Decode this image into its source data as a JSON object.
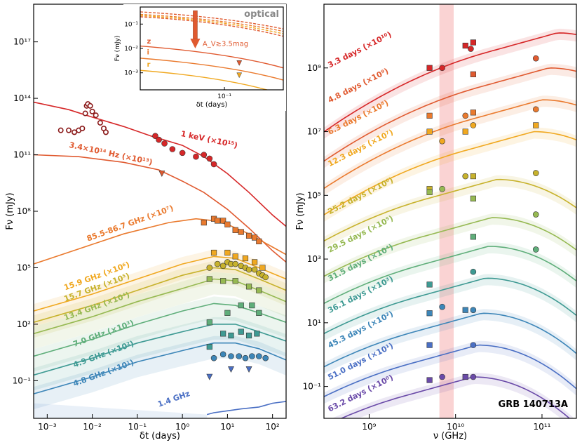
{
  "chart_data": [
    {
      "type": "line",
      "panel": "left",
      "title": "",
      "xlabel": "δt (days)",
      "ylabel": "Fν (mJy)",
      "xscale": "log",
      "yscale": "log",
      "xlim": [
        0.0005,
        200
      ],
      "ylim_log10": [
        -3,
        19
      ],
      "x_tick_labels": [
        "10⁻³",
        "10⁻²",
        "10⁻¹",
        "10⁰",
        "10¹",
        "10²"
      ],
      "y_tick_labels": [
        "10⁻¹",
        "10²",
        "10⁵",
        "10⁸",
        "10¹¹",
        "10¹⁴",
        "10¹⁷"
      ],
      "series": [
        {
          "name": "1 keV (×10¹⁵)",
          "color": "#d62728",
          "label_t": 0.9,
          "label_logF": 12.0,
          "model_t": [
            0.0005,
            0.003,
            0.01,
            0.05,
            0.2,
            1,
            3,
            10,
            30,
            100,
            200
          ],
          "model_logF": [
            13.8,
            13.4,
            13.0,
            12.5,
            12.0,
            11.5,
            10.9,
            10.0,
            9.0,
            7.8,
            7.2
          ],
          "obs_t": [
            0.002,
            0.003,
            0.004,
            0.005,
            0.006,
            0.007,
            0.0075,
            0.008,
            0.009,
            0.01,
            0.012,
            0.015,
            0.018,
            0.02,
            0.25,
            0.3,
            0.4,
            0.6,
            1.0,
            2.0,
            3.0,
            4.0,
            5.0
          ],
          "obs_logF": [
            12.3,
            12.3,
            12.2,
            12.3,
            12.4,
            13.2,
            13.6,
            13.7,
            13.6,
            13.3,
            13.1,
            12.7,
            12.4,
            12.2,
            12.0,
            11.8,
            11.6,
            11.3,
            11.1,
            10.9,
            11.0,
            10.8,
            10.5
          ]
        },
        {
          "name": "3.4×10¹⁴ Hz (×10¹³)",
          "color": "#e05a30",
          "label_t": 0.003,
          "label_logF": 11.4,
          "model_t": [
            0.0005,
            0.005,
            0.05,
            0.3,
            1,
            3,
            10,
            30,
            100,
            200
          ],
          "model_logF": [
            11.0,
            10.9,
            10.6,
            10.2,
            9.6,
            9.0,
            8.1,
            7.1,
            5.9,
            5.3
          ],
          "obs_t": [
            0.35
          ],
          "obs_logF": [
            10.0
          ],
          "obs_marker": "triangle"
        },
        {
          "name": "85.5-86.7 GHz (×10⁷)",
          "color": "#ea7a2e",
          "label_t": 0.008,
          "label_logF": 6.4,
          "model_t": [
            0.0005,
            0.005,
            0.05,
            0.5,
            2,
            5,
            10,
            30,
            100,
            200
          ],
          "model_logF": [
            5.2,
            6.0,
            6.8,
            7.4,
            7.6,
            7.5,
            7.3,
            6.8,
            6.1,
            5.7
          ],
          "obs_t": [
            3,
            5,
            6,
            8,
            10,
            15,
            20,
            30,
            40,
            50
          ],
          "obs_logF": [
            7.4,
            7.6,
            7.5,
            7.5,
            7.3,
            7.0,
            6.9,
            6.7,
            6.6,
            6.4
          ]
        },
        {
          "name": "15.9 GHz (×10⁶)",
          "color": "#f0a820",
          "label_t": 0.0025,
          "label_logF": 3.8,
          "model_t": [
            0.0005,
            0.01,
            0.1,
            1,
            5,
            15,
            50,
            200
          ],
          "model_logF": [
            2.7,
            3.6,
            4.4,
            5.2,
            5.6,
            5.5,
            5.0,
            4.4
          ],
          "obs_t": [
            5,
            10,
            15,
            25,
            40,
            60
          ],
          "obs_logF": [
            5.8,
            5.8,
            5.6,
            5.5,
            5.3,
            5.0
          ]
        },
        {
          "name": "15.7 GHz (×10⁵)",
          "color": "#c7b22c",
          "label_t": 0.0025,
          "label_logF": 3.2,
          "model_t": [
            0.0005,
            0.01,
            0.1,
            1,
            5,
            15,
            50,
            200
          ],
          "model_logF": [
            2.1,
            3.0,
            3.8,
            4.6,
            5.0,
            4.9,
            4.4,
            3.8
          ],
          "obs_t": [
            4,
            6,
            8,
            10,
            12,
            15,
            20,
            25,
            30,
            40,
            50,
            60,
            70
          ],
          "obs_logF": [
            5.0,
            5.2,
            5.1,
            5.3,
            5.2,
            5.2,
            5.1,
            5.0,
            4.9,
            4.9,
            4.7,
            4.6,
            4.5
          ]
        },
        {
          "name": "13.4 GHz (×10⁴)",
          "color": "#96b952",
          "label_t": 0.0025,
          "label_logF": 2.2,
          "model_t": [
            0.0005,
            0.01,
            0.1,
            1,
            5,
            15,
            50,
            200
          ],
          "model_logF": [
            1.5,
            2.4,
            3.2,
            3.9,
            4.4,
            4.3,
            3.8,
            3.2
          ],
          "obs_t": [
            4,
            8,
            15,
            30,
            50
          ],
          "obs_logF": [
            4.4,
            4.3,
            4.3,
            4.0,
            3.8
          ]
        },
        {
          "name": "7.0 GHz (×10³)",
          "color": "#5fae7a",
          "label_t": 0.004,
          "label_logF": 0.8,
          "model_t": [
            0.0005,
            0.01,
            0.1,
            1,
            5,
            15,
            50,
            200
          ],
          "model_logF": [
            0.3,
            1.2,
            2.0,
            2.7,
            3.1,
            3.0,
            2.6,
            2.1
          ],
          "obs_t": [
            4,
            10,
            20,
            35,
            50
          ],
          "obs_logF": [
            2.1,
            2.6,
            3.0,
            3.0,
            2.6
          ]
        },
        {
          "name": "4.9 GHz (×10²)",
          "color": "#3e9a93",
          "label_t": 0.004,
          "label_logF": -0.3,
          "model_t": [
            0.0005,
            0.01,
            0.1,
            1,
            5,
            15,
            50,
            200
          ],
          "model_logF": [
            -0.7,
            0.2,
            1.0,
            1.6,
            2.0,
            2.0,
            1.6,
            1.1
          ],
          "obs_t": [
            4,
            8,
            12,
            20,
            30,
            45
          ],
          "obs_logF": [
            0.8,
            1.5,
            1.4,
            1.6,
            1.4,
            1.5
          ]
        },
        {
          "name": "4.8 GHz (×10¹)",
          "color": "#3d86b8",
          "label_t": 0.004,
          "label_logF": -1.3,
          "model_t": [
            0.0005,
            0.01,
            0.1,
            1,
            5,
            15,
            50,
            200
          ],
          "model_logF": [
            -1.7,
            -0.8,
            0.0,
            0.6,
            1.0,
            1.0,
            0.7,
            0.1
          ],
          "obs_t": [
            5,
            8,
            12,
            18,
            25,
            35,
            50,
            70
          ],
          "obs_logF": [
            0.2,
            0.4,
            0.3,
            0.3,
            0.2,
            0.3,
            0.3,
            0.2
          ]
        },
        {
          "name": "1.4 GHz",
          "color": "#4a6fc4",
          "label_t": 0.3,
          "label_logF": -2.4,
          "model_t": [
            3.5,
            5,
            10,
            20,
            50,
            100,
            200
          ],
          "model_logF": [
            -2.8,
            -2.7,
            -2.6,
            -2.5,
            -2.4,
            -2.2,
            -2.1
          ],
          "obs_t": [
            4,
            12,
            30
          ],
          "obs_logF": [
            -0.8,
            -0.4,
            -0.4
          ],
          "obs_marker": "triangle"
        }
      ],
      "inset": {
        "title": "optical",
        "xlabel": "δt (days)",
        "ylabel": "Fν (mJy)",
        "xlim": [
          0.01,
          0.5
        ],
        "ylim_log10": [
          -3.7,
          -0.3
        ],
        "y_tick_labels": [
          "10⁻³",
          "10⁻²",
          "10⁻¹"
        ],
        "x_tick_labels": [
          "10⁻¹"
        ],
        "annotation": "A_V≳3.5mag",
        "band_labels": [
          "z",
          "i",
          "r"
        ],
        "band_colors": [
          "#e05a30",
          "#ea7a2e",
          "#f0a820"
        ],
        "limits_t": [
          0.15,
          0.15
        ],
        "limits_logF": [
          -2.6,
          -3.1
        ]
      }
    },
    {
      "type": "line",
      "panel": "right",
      "title": "GRB 140713A",
      "xlabel": "ν (GHz)",
      "ylabel": "Fν (mJy)",
      "xscale": "log",
      "yscale": "log",
      "xlim": [
        300000000.0,
        250000000000.0
      ],
      "ylim_log10": [
        -2,
        11
      ],
      "x_tick_labels": [
        "10⁹",
        "10¹⁰",
        "10¹¹"
      ],
      "y_tick_labels": [
        "10⁻¹",
        "10¹",
        "10³",
        "10⁵",
        "10⁷",
        "10⁹"
      ],
      "shaded_band_nu": [
        6500000000.0,
        9500000000.0
      ],
      "series": [
        {
          "name": "3.3 days (×10¹⁰)",
          "color": "#d62728",
          "peak_nu": 150000000000.0,
          "peak_logF": 10.1,
          "offset": 0.0,
          "obs_nu": [
            5000000000.0,
            7000000000.0,
            13000000000.0,
            15000000000.0,
            16000000000.0
          ],
          "obs_logF": [
            9.0,
            9.0,
            9.7,
            9.6,
            9.8
          ]
        },
        {
          "name": "4.8 days (×10⁹)",
          "color": "#e05a30",
          "peak_nu": 120000000000.0,
          "peak_logF": 9.0,
          "offset": 0.0,
          "obs_nu": [
            16000000000.0,
            85000000000.0
          ],
          "obs_logF": [
            8.8,
            9.3
          ]
        },
        {
          "name": "6.3 days (×10⁸)",
          "color": "#ea7a2e",
          "peak_nu": 100000000000.0,
          "peak_logF": 8.0,
          "offset": 0.0,
          "obs_nu": [
            5000000000.0,
            13000000000.0,
            16000000000.0,
            85000000000.0
          ],
          "obs_logF": [
            7.5,
            7.5,
            7.6,
            7.7
          ]
        },
        {
          "name": "12.3 days (×10⁷)",
          "color": "#f0a820",
          "peak_nu": 80000000000.0,
          "peak_logF": 7.0,
          "offset": 0.0,
          "obs_nu": [
            5000000000.0,
            7000000000.0,
            13000000000.0,
            16000000000.0,
            85000000000.0
          ],
          "obs_logF": [
            7.0,
            6.7,
            7.0,
            7.2,
            7.2
          ]
        },
        {
          "name": "25.2 days (×10⁶)",
          "color": "#c7b22c",
          "peak_nu": 30000000000.0,
          "peak_logF": 5.5,
          "offset": 0.0,
          "obs_nu": [
            5000000000.0,
            13000000000.0,
            16000000000.0,
            85000000000.0
          ],
          "obs_logF": [
            5.2,
            5.6,
            5.6,
            5.7
          ]
        },
        {
          "name": "29.5 days (×10⁵)",
          "color": "#96b952",
          "peak_nu": 26000000000.0,
          "peak_logF": 4.3,
          "offset": 0.0,
          "obs_nu": [
            5000000000.0,
            7000000000.0,
            16000000000.0,
            85000000000.0
          ],
          "obs_logF": [
            5.1,
            5.2,
            4.9,
            4.4
          ]
        },
        {
          "name": "31.5 days (×10⁴)",
          "color": "#5fae7a",
          "peak_nu": 24000000000.0,
          "peak_logF": 3.4,
          "offset": 0.0,
          "obs_nu": [
            16000000000.0,
            85000000000.0
          ],
          "obs_logF": [
            3.7,
            3.3
          ]
        },
        {
          "name": "36.1 days (×10³)",
          "color": "#3e9a93",
          "peak_nu": 22000000000.0,
          "peak_logF": 2.4,
          "offset": 0.0,
          "obs_nu": [
            5000000000.0,
            16000000000.0
          ],
          "obs_logF": [
            2.2,
            2.6
          ]
        },
        {
          "name": "45.3 days (×10²)",
          "color": "#3d86b8",
          "peak_nu": 20000000000.0,
          "peak_logF": 1.3,
          "offset": 0.0,
          "obs_nu": [
            5000000000.0,
            7000000000.0,
            13000000000.0,
            16000000000.0
          ],
          "obs_logF": [
            1.3,
            1.5,
            1.4,
            1.4
          ]
        },
        {
          "name": "51.0 days (×10¹)",
          "color": "#4a6fc4",
          "peak_nu": 18000000000.0,
          "peak_logF": 0.3,
          "offset": 0.0,
          "obs_nu": [
            5000000000.0,
            16000000000.0
          ],
          "obs_logF": [
            0.3,
            0.3
          ]
        },
        {
          "name": "63.2 days (×10⁰)",
          "color": "#6a4aa8",
          "peak_nu": 16000000000.0,
          "peak_logF": -0.7,
          "offset": 0.0,
          "obs_nu": [
            5000000000.0,
            7000000000.0,
            13000000000.0,
            16000000000.0
          ],
          "obs_logF": [
            -0.8,
            -0.7,
            -0.7,
            -0.7
          ]
        }
      ]
    }
  ]
}
